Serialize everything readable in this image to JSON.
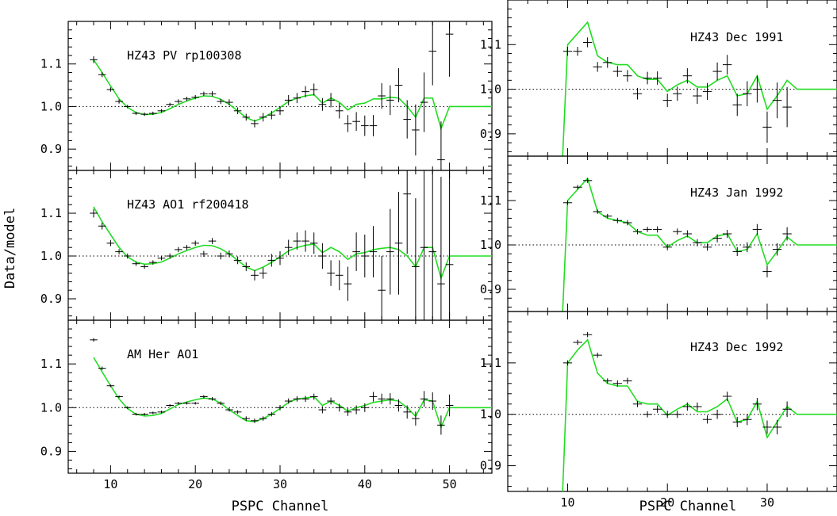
{
  "ylabel": "Data/model",
  "xlabel_left": "PSPC Channel",
  "xlabel_right": "PSPC Channel",
  "colors": {
    "model": "#22dd22",
    "data": "#000000",
    "frame": "#000000"
  },
  "chart_data": [
    {
      "type": "scatter",
      "title": "HZ43 PV rp100308",
      "xlim": [
        5,
        55
      ],
      "ylim": [
        0.85,
        1.2
      ],
      "x_ticks": [
        10,
        20,
        30,
        40,
        50
      ],
      "y_ticks": [
        0.9,
        1.0,
        1.1
      ],
      "reference_line": 1.0,
      "model": {
        "x": [
          8,
          9,
          10,
          11,
          12,
          13,
          14,
          15,
          16,
          17,
          18,
          19,
          20,
          21,
          22,
          23,
          24,
          25,
          26,
          27,
          28,
          29,
          30,
          31,
          32,
          33,
          34,
          35,
          36,
          37,
          38,
          39,
          40,
          41,
          42,
          43,
          44,
          45,
          46,
          47,
          48,
          49,
          50,
          51,
          55
        ],
        "y": [
          1.11,
          1.08,
          1.048,
          1.018,
          0.998,
          0.986,
          0.981,
          0.982,
          0.986,
          0.995,
          1.005,
          1.013,
          1.02,
          1.025,
          1.024,
          1.017,
          1.005,
          0.99,
          0.974,
          0.966,
          0.974,
          0.985,
          0.998,
          1.012,
          1.02,
          1.025,
          1.028,
          1.008,
          1.02,
          1.01,
          0.992,
          1.005,
          1.008,
          1.018,
          1.018,
          1.022,
          1.02,
          1.0,
          0.975,
          1.02,
          1.02,
          0.948,
          1.0,
          1.0,
          1.0
        ]
      },
      "data": {
        "x": [
          8,
          9,
          10,
          11,
          12,
          13,
          14,
          15,
          16,
          17,
          18,
          19,
          20,
          21,
          22,
          23,
          24,
          25,
          26,
          27,
          28,
          29,
          30,
          31,
          32,
          33,
          34,
          35,
          36,
          37,
          38,
          39,
          40,
          41,
          42,
          43,
          44,
          45,
          46,
          47,
          48,
          49,
          50
        ],
        "y": [
          1.11,
          1.075,
          1.04,
          1.012,
          1.0,
          0.984,
          0.982,
          0.984,
          0.99,
          1.005,
          1.012,
          1.018,
          1.022,
          1.03,
          1.03,
          1.012,
          1.01,
          0.99,
          0.975,
          0.96,
          0.975,
          0.98,
          0.99,
          1.015,
          1.02,
          1.035,
          1.04,
          1.005,
          1.015,
          0.99,
          0.96,
          0.965,
          0.955,
          0.955,
          1.025,
          1.015,
          1.05,
          0.97,
          0.945,
          1.01,
          1.13,
          0.875,
          1.17
        ],
        "err": [
          0.008,
          0.006,
          0.005,
          0.005,
          0.004,
          0.004,
          0.004,
          0.004,
          0.004,
          0.004,
          0.005,
          0.005,
          0.005,
          0.005,
          0.006,
          0.006,
          0.007,
          0.008,
          0.008,
          0.009,
          0.01,
          0.01,
          0.01,
          0.012,
          0.012,
          0.013,
          0.014,
          0.015,
          0.017,
          0.018,
          0.02,
          0.022,
          0.024,
          0.025,
          0.03,
          0.035,
          0.04,
          0.045,
          0.06,
          0.07,
          0.08,
          0.09,
          0.1
        ]
      }
    },
    {
      "type": "scatter",
      "title": "HZ43 AO1 rf200418",
      "xlim": [
        5,
        55
      ],
      "ylim": [
        0.85,
        1.2
      ],
      "x_ticks": [
        10,
        20,
        30,
        40,
        50
      ],
      "y_ticks": [
        0.9,
        1.0,
        1.1
      ],
      "reference_line": 1.0,
      "model": {
        "x": [
          8,
          9,
          10,
          11,
          12,
          13,
          14,
          15,
          16,
          17,
          18,
          19,
          20,
          21,
          22,
          23,
          24,
          25,
          26,
          27,
          28,
          29,
          30,
          31,
          32,
          33,
          34,
          35,
          36,
          37,
          38,
          39,
          40,
          41,
          42,
          43,
          44,
          45,
          46,
          47,
          48,
          49,
          50,
          51,
          55
        ],
        "y": [
          1.115,
          1.08,
          1.05,
          1.02,
          0.998,
          0.986,
          0.981,
          0.982,
          0.986,
          0.995,
          1.005,
          1.013,
          1.02,
          1.025,
          1.024,
          1.017,
          1.005,
          0.99,
          0.974,
          0.966,
          0.974,
          0.985,
          0.998,
          1.012,
          1.02,
          1.025,
          1.028,
          1.008,
          1.02,
          1.01,
          0.992,
          1.005,
          1.008,
          1.015,
          1.018,
          1.02,
          1.015,
          1.0,
          0.975,
          1.02,
          1.02,
          0.948,
          1.0,
          1.0,
          1.0
        ]
      },
      "data": {
        "x": [
          8,
          9,
          10,
          11,
          12,
          13,
          14,
          15,
          16,
          17,
          18,
          19,
          20,
          21,
          22,
          23,
          24,
          25,
          26,
          27,
          28,
          29,
          30,
          31,
          32,
          33,
          34,
          35,
          36,
          37,
          38,
          39,
          40,
          41,
          42,
          43,
          44,
          45,
          46,
          47,
          48,
          49,
          50
        ],
        "y": [
          1.1,
          1.07,
          1.03,
          1.01,
          1.0,
          0.982,
          0.975,
          0.985,
          0.995,
          1.0,
          1.015,
          1.02,
          1.03,
          1.005,
          1.035,
          1.0,
          1.005,
          0.99,
          0.975,
          0.955,
          0.96,
          0.99,
          0.995,
          1.02,
          1.035,
          1.035,
          1.03,
          1.0,
          0.96,
          0.955,
          0.935,
          1.01,
          1.0,
          1.01,
          0.92,
          1.01,
          1.03,
          1.145,
          0.975,
          1.02,
          1.01,
          0.935,
          0.98
        ],
        "err": [
          0.01,
          0.008,
          0.007,
          0.006,
          0.006,
          0.005,
          0.005,
          0.005,
          0.005,
          0.006,
          0.006,
          0.006,
          0.006,
          0.007,
          0.007,
          0.008,
          0.008,
          0.009,
          0.01,
          0.012,
          0.013,
          0.015,
          0.016,
          0.018,
          0.02,
          0.025,
          0.025,
          0.03,
          0.03,
          0.035,
          0.04,
          0.045,
          0.05,
          0.06,
          0.08,
          0.1,
          0.12,
          0.14,
          0.16,
          0.18,
          0.2,
          0.25,
          0.3
        ]
      }
    },
    {
      "type": "scatter",
      "title": "AM Her AO1",
      "xlim": [
        5,
        55
      ],
      "ylim": [
        0.85,
        1.2
      ],
      "x_ticks": [
        10,
        20,
        30,
        40,
        50
      ],
      "y_ticks": [
        0.9,
        1.0,
        1.1
      ],
      "reference_line": 1.0,
      "model": {
        "x": [
          8,
          9,
          10,
          11,
          12,
          13,
          14,
          15,
          16,
          17,
          18,
          19,
          20,
          21,
          22,
          23,
          24,
          25,
          26,
          27,
          28,
          29,
          30,
          31,
          32,
          33,
          34,
          35,
          36,
          37,
          38,
          39,
          40,
          41,
          42,
          43,
          44,
          45,
          46,
          47,
          48,
          49,
          50,
          51,
          55
        ],
        "y": [
          1.115,
          1.082,
          1.05,
          1.02,
          0.998,
          0.985,
          0.981,
          0.982,
          0.987,
          0.997,
          1.007,
          1.013,
          1.018,
          1.022,
          1.02,
          1.01,
          0.995,
          0.982,
          0.97,
          0.968,
          0.975,
          0.985,
          0.998,
          1.012,
          1.02,
          1.022,
          1.025,
          1.005,
          1.015,
          1.005,
          0.992,
          1.0,
          1.005,
          1.012,
          1.015,
          1.018,
          1.015,
          1.0,
          0.98,
          1.018,
          1.015,
          0.955,
          1.0,
          1.0,
          1.0
        ]
      },
      "data": {
        "x": [
          8,
          9,
          10,
          11,
          12,
          13,
          14,
          15,
          16,
          17,
          18,
          19,
          20,
          21,
          22,
          23,
          24,
          25,
          26,
          27,
          28,
          29,
          30,
          31,
          32,
          33,
          34,
          35,
          36,
          37,
          38,
          39,
          40,
          41,
          42,
          43,
          44,
          45,
          46,
          47,
          48,
          49,
          50
        ],
        "y": [
          1.155,
          1.09,
          1.05,
          1.025,
          1.0,
          0.985,
          0.985,
          0.988,
          0.99,
          1.005,
          1.01,
          1.01,
          1.01,
          1.025,
          1.02,
          1.01,
          0.995,
          0.99,
          0.975,
          0.97,
          0.975,
          0.985,
          1.0,
          1.015,
          1.02,
          1.02,
          1.025,
          0.995,
          1.015,
          1.0,
          0.99,
          0.995,
          1.0,
          1.025,
          1.02,
          1.02,
          1.005,
          0.99,
          0.975,
          1.02,
          1.015,
          0.96,
          1.005
        ],
        "err": [
          0.004,
          0.004,
          0.003,
          0.003,
          0.003,
          0.003,
          0.003,
          0.003,
          0.003,
          0.003,
          0.003,
          0.003,
          0.003,
          0.004,
          0.004,
          0.004,
          0.004,
          0.004,
          0.005,
          0.005,
          0.005,
          0.005,
          0.006,
          0.006,
          0.006,
          0.007,
          0.007,
          0.008,
          0.008,
          0.009,
          0.009,
          0.01,
          0.01,
          0.011,
          0.012,
          0.013,
          0.014,
          0.015,
          0.016,
          0.018,
          0.02,
          0.022,
          0.025
        ]
      }
    },
    {
      "type": "scatter",
      "title": "HZ43 Dec 1991",
      "xlim": [
        4,
        37
      ],
      "ylim": [
        0.85,
        1.2
      ],
      "x_ticks": [
        10,
        20,
        30
      ],
      "y_ticks": [
        0.9,
        1.0,
        1.1
      ],
      "reference_line": 1.0,
      "model": {
        "x": [
          9.5,
          10,
          11,
          12,
          13,
          14,
          15,
          16,
          17,
          18,
          19,
          20,
          21,
          22,
          23,
          24,
          25,
          26,
          27,
          28,
          29,
          30,
          31,
          32,
          33,
          34,
          37
        ],
        "y": [
          0.85,
          1.1,
          1.125,
          1.15,
          1.075,
          1.06,
          1.055,
          1.055,
          1.03,
          1.022,
          1.022,
          0.995,
          1.01,
          1.02,
          1.005,
          1.005,
          1.02,
          1.03,
          0.985,
          0.99,
          1.03,
          0.955,
          0.985,
          1.02,
          1.0,
          1.0,
          1.0
        ]
      },
      "data": {
        "x": [
          10,
          11,
          12,
          13,
          14,
          15,
          16,
          17,
          18,
          19,
          20,
          21,
          22,
          23,
          24,
          25,
          26,
          27,
          28,
          29,
          30,
          31,
          32
        ],
        "y": [
          1.085,
          1.085,
          1.105,
          1.05,
          1.06,
          1.04,
          1.03,
          0.99,
          1.025,
          1.025,
          0.975,
          0.99,
          1.03,
          0.985,
          0.995,
          1.04,
          1.055,
          0.965,
          0.99,
          1.0,
          0.915,
          0.975,
          0.96
        ],
        "err": [
          0.01,
          0.01,
          0.011,
          0.011,
          0.012,
          0.012,
          0.013,
          0.013,
          0.014,
          0.015,
          0.015,
          0.016,
          0.017,
          0.018,
          0.019,
          0.02,
          0.022,
          0.025,
          0.028,
          0.03,
          0.035,
          0.04,
          0.045
        ]
      }
    },
    {
      "type": "scatter",
      "title": "HZ43 Jan 1992",
      "xlim": [
        4,
        37
      ],
      "ylim": [
        0.85,
        1.2
      ],
      "x_ticks": [
        10,
        20,
        30
      ],
      "y_ticks": [
        0.9,
        1.0,
        1.1
      ],
      "reference_line": 1.0,
      "model": {
        "x": [
          9.5,
          10,
          11,
          12,
          13,
          14,
          15,
          16,
          17,
          18,
          19,
          20,
          21,
          22,
          23,
          24,
          25,
          26,
          27,
          28,
          29,
          30,
          31,
          32,
          33,
          34,
          37
        ],
        "y": [
          0.85,
          1.1,
          1.125,
          1.15,
          1.075,
          1.06,
          1.055,
          1.05,
          1.03,
          1.022,
          1.022,
          0.995,
          1.01,
          1.02,
          1.005,
          1.005,
          1.02,
          1.025,
          0.985,
          0.99,
          1.025,
          0.955,
          0.985,
          1.018,
          1.0,
          1.0,
          1.0
        ]
      },
      "data": {
        "x": [
          10,
          11,
          12,
          13,
          14,
          15,
          16,
          17,
          18,
          19,
          20,
          21,
          22,
          23,
          24,
          25,
          26,
          27,
          28,
          29,
          30,
          31,
          32
        ],
        "y": [
          1.095,
          1.13,
          1.145,
          1.075,
          1.065,
          1.055,
          1.05,
          1.03,
          1.035,
          1.035,
          0.995,
          1.03,
          1.025,
          1.005,
          0.995,
          1.015,
          1.025,
          0.985,
          0.995,
          1.035,
          0.94,
          0.99,
          1.025
        ],
        "err": [
          0.005,
          0.005,
          0.005,
          0.005,
          0.005,
          0.006,
          0.006,
          0.006,
          0.006,
          0.007,
          0.007,
          0.007,
          0.008,
          0.008,
          0.008,
          0.009,
          0.009,
          0.01,
          0.011,
          0.012,
          0.013,
          0.014,
          0.015
        ]
      }
    },
    {
      "type": "scatter",
      "title": "HZ43 Dec 1992",
      "xlim": [
        4,
        37
      ],
      "ylim": [
        0.85,
        1.2
      ],
      "x_ticks": [
        10,
        20,
        30
      ],
      "y_ticks": [
        0.9,
        1.0,
        1.1
      ],
      "reference_line": 1.0,
      "model": {
        "x": [
          9.5,
          10,
          11,
          12,
          13,
          14,
          15,
          16,
          17,
          18,
          19,
          20,
          21,
          22,
          23,
          24,
          25,
          26,
          27,
          28,
          29,
          30,
          31,
          32,
          33,
          34,
          37
        ],
        "y": [
          0.85,
          1.1,
          1.125,
          1.145,
          1.08,
          1.06,
          1.055,
          1.055,
          1.025,
          1.02,
          1.02,
          0.998,
          1.01,
          1.02,
          1.005,
          1.005,
          1.015,
          1.03,
          0.985,
          0.99,
          1.025,
          0.955,
          0.985,
          1.015,
          1.0,
          1.0,
          1.0
        ]
      },
      "data": {
        "x": [
          10,
          11,
          12,
          13,
          14,
          15,
          16,
          17,
          18,
          19,
          20,
          21,
          22,
          23,
          24,
          25,
          26,
          27,
          28,
          29,
          30,
          31,
          32
        ],
        "y": [
          1.1,
          1.14,
          1.155,
          1.115,
          1.065,
          1.06,
          1.065,
          1.02,
          1.0,
          1.01,
          1.0,
          1.0,
          1.015,
          1.015,
          0.99,
          1.0,
          1.035,
          0.985,
          0.99,
          1.02,
          0.975,
          0.975,
          1.01
        ],
        "err": [
          0.005,
          0.005,
          0.005,
          0.005,
          0.005,
          0.006,
          0.006,
          0.006,
          0.006,
          0.007,
          0.007,
          0.007,
          0.008,
          0.008,
          0.008,
          0.009,
          0.009,
          0.01,
          0.011,
          0.012,
          0.013,
          0.014,
          0.015
        ]
      }
    }
  ]
}
